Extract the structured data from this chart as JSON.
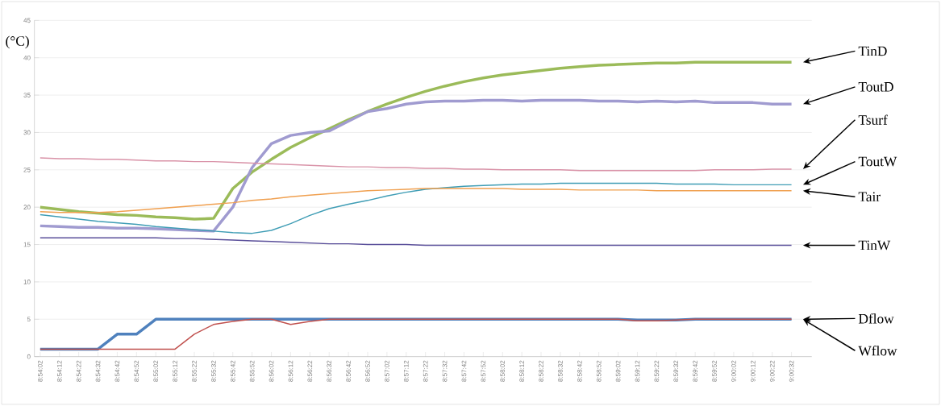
{
  "chart_data": {
    "type": "line",
    "ylabel": "(°C)",
    "categories": [
      "8:54:02",
      "8:54:12",
      "8:54:22",
      "8:54:32",
      "8:54:42",
      "8:54:52",
      "8:55:02",
      "8:55:12",
      "8:55:22",
      "8:55:32",
      "8:55:42",
      "8:55:52",
      "8:56:02",
      "8:56:12",
      "8:56:22",
      "8:56:32",
      "8:56:42",
      "8:56:52",
      "8:57:02",
      "8:57:12",
      "8:57:22",
      "8:57:32",
      "8:57:42",
      "8:57:52",
      "8:58:02",
      "8:58:12",
      "8:58:22",
      "8:58:32",
      "8:58:42",
      "8:58:52",
      "8:59:02",
      "8:59:12",
      "8:59:22",
      "8:59:32",
      "8:59:42",
      "8:59:52",
      "9:00:02",
      "9:00:12",
      "9:00:22",
      "9:00:32"
    ],
    "ylim": [
      0,
      45
    ],
    "yticks": [
      0,
      5,
      10,
      15,
      20,
      25,
      30,
      35,
      40,
      45
    ],
    "grid": "y",
    "legend": false,
    "marker": "none",
    "line_style": "solid",
    "series": [
      {
        "name": "TinD",
        "color": "#9bbb59",
        "values": [
          20.0,
          19.7,
          19.4,
          19.2,
          19.0,
          18.9,
          18.7,
          18.6,
          18.4,
          18.5,
          22.5,
          24.7,
          26.4,
          28.0,
          29.3,
          30.5,
          31.7,
          32.8,
          33.8,
          34.7,
          35.5,
          36.2,
          36.8,
          37.3,
          37.7,
          38.0,
          38.3,
          38.6,
          38.8,
          39.0,
          39.1,
          39.2,
          39.3,
          39.3,
          39.4,
          39.4,
          39.4,
          39.4,
          39.4,
          39.4
        ]
      },
      {
        "name": "ToutD",
        "color": "#a09bd0",
        "values": [
          17.5,
          17.4,
          17.3,
          17.3,
          17.2,
          17.2,
          17.1,
          17.0,
          16.9,
          16.8,
          20.0,
          25.3,
          28.5,
          29.6,
          30.0,
          30.2,
          31.5,
          32.8,
          33.2,
          33.8,
          34.1,
          34.2,
          34.2,
          34.3,
          34.3,
          34.2,
          34.3,
          34.3,
          34.3,
          34.2,
          34.2,
          34.1,
          34.2,
          34.1,
          34.2,
          34.0,
          34.0,
          34.0,
          33.8,
          33.8
        ]
      },
      {
        "name": "Tsurf",
        "color": "#d993a8",
        "values": [
          26.6,
          26.5,
          26.5,
          26.4,
          26.4,
          26.3,
          26.2,
          26.2,
          26.1,
          26.1,
          26.0,
          25.9,
          25.8,
          25.7,
          25.6,
          25.5,
          25.4,
          25.4,
          25.3,
          25.3,
          25.2,
          25.2,
          25.1,
          25.1,
          25.0,
          25.0,
          25.0,
          25.0,
          24.9,
          24.9,
          24.9,
          24.9,
          24.9,
          24.9,
          24.9,
          25.0,
          25.0,
          25.0,
          25.1,
          25.1
        ]
      },
      {
        "name": "ToutW",
        "color": "#3f9db5",
        "values": [
          19.0,
          18.7,
          18.4,
          18.1,
          17.9,
          17.7,
          17.4,
          17.2,
          17.0,
          16.8,
          16.6,
          16.5,
          16.9,
          17.8,
          18.9,
          19.8,
          20.4,
          20.9,
          21.5,
          22.0,
          22.4,
          22.6,
          22.8,
          22.9,
          23.0,
          23.1,
          23.1,
          23.2,
          23.2,
          23.2,
          23.2,
          23.2,
          23.2,
          23.1,
          23.1,
          23.1,
          23.0,
          23.0,
          23.0,
          23.0
        ]
      },
      {
        "name": "Tair",
        "color": "#f0a050",
        "values": [
          19.4,
          19.3,
          19.3,
          19.3,
          19.4,
          19.6,
          19.8,
          20.0,
          20.2,
          20.4,
          20.6,
          20.9,
          21.1,
          21.4,
          21.6,
          21.8,
          22.0,
          22.2,
          22.3,
          22.4,
          22.5,
          22.5,
          22.5,
          22.5,
          22.5,
          22.4,
          22.4,
          22.4,
          22.3,
          22.3,
          22.3,
          22.3,
          22.2,
          22.2,
          22.2,
          22.2,
          22.2,
          22.2,
          22.2,
          22.2
        ]
      },
      {
        "name": "TinW",
        "color": "#5a4f9a",
        "values": [
          15.9,
          15.9,
          15.9,
          15.9,
          15.9,
          15.9,
          15.9,
          15.8,
          15.8,
          15.7,
          15.6,
          15.5,
          15.4,
          15.3,
          15.2,
          15.1,
          15.1,
          15.0,
          15.0,
          15.0,
          14.9,
          14.9,
          14.9,
          14.9,
          14.9,
          14.9,
          14.9,
          14.9,
          14.9,
          14.9,
          14.9,
          14.9,
          14.9,
          14.9,
          14.9,
          14.9,
          14.9,
          14.9,
          14.9,
          14.9
        ]
      },
      {
        "name": "Dflow",
        "color": "#4f81bd",
        "values": [
          1.0,
          1.0,
          1.0,
          1.0,
          3.0,
          3.0,
          5.0,
          5.0,
          5.0,
          5.0,
          5.0,
          5.0,
          5.0,
          5.0,
          5.0,
          5.0,
          5.0,
          5.0,
          5.0,
          5.0,
          5.0,
          5.0,
          5.0,
          5.0,
          5.0,
          5.0,
          5.0,
          5.0,
          5.0,
          5.0,
          5.0,
          4.9,
          4.9,
          4.9,
          5.0,
          5.0,
          5.0,
          5.0,
          5.0,
          5.0
        ]
      },
      {
        "name": "Wflow",
        "color": "#c0504d",
        "values": [
          1.0,
          1.0,
          1.0,
          1.0,
          1.0,
          1.0,
          1.0,
          1.0,
          3.0,
          4.3,
          4.7,
          5.0,
          5.0,
          4.3,
          4.7,
          5.0,
          5.0,
          5.0,
          5.0,
          5.0,
          5.0,
          5.0,
          5.0,
          5.0,
          5.0,
          5.0,
          5.0,
          5.0,
          5.0,
          5.0,
          5.0,
          4.8,
          4.8,
          4.9,
          5.0,
          5.0,
          5.0,
          5.0,
          5.0,
          5.0
        ]
      }
    ]
  }
}
